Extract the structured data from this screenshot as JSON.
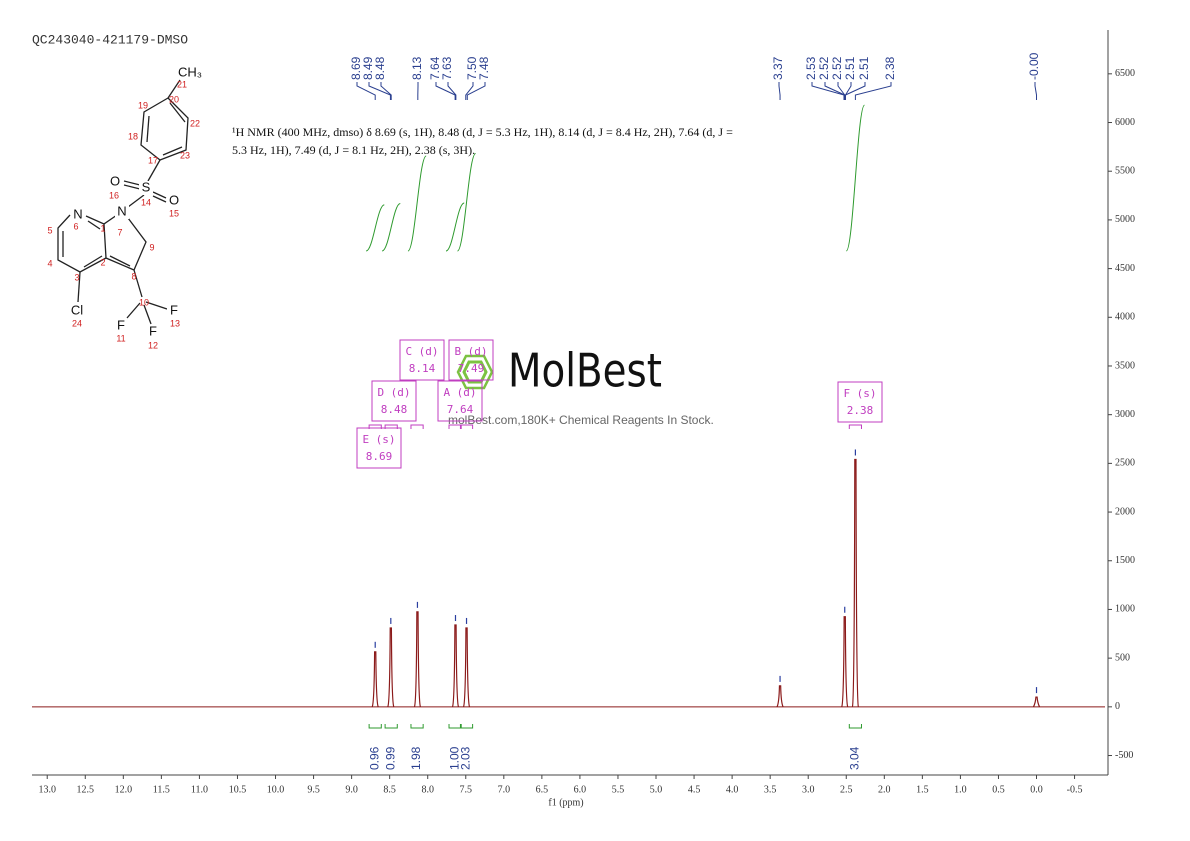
{
  "chart_data": {
    "type": "spectrum",
    "title": "QC243040-421179-DMSO",
    "x_label": "f1 (ppm)",
    "description": [
      "¹H NMR (400 MHz, dmso) δ 8.69 (s, 1H), 8.48 (d, J = 5.3 Hz, 1H), 8.14 (d, J = 8.4 Hz, 2H), 7.64 (d, J =",
      "5.3 Hz, 1H), 7.49 (d, J = 8.1 Hz, 2H), 2.38 (s, 3H)."
    ],
    "watermark": {
      "brand": "MolBest",
      "tagline": "molBest.com,180K+ Chemical Reagents In Stock."
    },
    "color": "#8b1a1a",
    "x": [
      8.69,
      8.485,
      8.135,
      7.635,
      7.49,
      3.37,
      2.52,
      2.38,
      0
    ],
    "values": [
      565,
      810,
      975,
      840,
      810,
      215,
      925,
      2540,
      100
    ],
    "xlim": [
      13.2,
      -0.9
    ],
    "ylim": [
      -700,
      6950
    ],
    "xticks": [
      {
        "value": 13,
        "label": "13.0"
      },
      12.5,
      {
        "value": 12,
        "label": "12.0"
      },
      11.5,
      {
        "value": 11,
        "label": "11.0"
      },
      10.5,
      {
        "value": 10,
        "label": "10.0"
      },
      9.5,
      {
        "value": 9,
        "label": "9.0"
      },
      8.5,
      {
        "value": 8,
        "label": "8.0"
      },
      7.5,
      {
        "value": 7,
        "label": "7.0"
      },
      6.5,
      {
        "value": 6,
        "label": "6.0"
      },
      5.5,
      {
        "value": 5,
        "label": "5.0"
      },
      4.5,
      {
        "value": 4,
        "label": "4.0"
      },
      3.5,
      {
        "value": 3,
        "label": "3.0"
      },
      2.5,
      {
        "value": 2,
        "label": "2.0"
      },
      1.5,
      {
        "value": 1,
        "label": "1.0"
      },
      0.5,
      {
        "value": 0,
        "label": "0.0"
      },
      -0.5
    ],
    "yticks": [
      -500,
      0,
      500,
      1000,
      1500,
      2000,
      2500,
      3000,
      3500,
      4000,
      4500,
      5000,
      5500,
      6000,
      6500
    ],
    "peak_labels": {
      "values": [
        8.69,
        8.49,
        8.48,
        8.13,
        7.64,
        7.63,
        7.5,
        7.48,
        3.37,
        2.53,
        2.52,
        2.52,
        2.51,
        2.51,
        2.38,
        0
      ],
      "value_labels": [
        "8.69",
        "8.49",
        "8.48",
        "8.13",
        "7.64",
        "7.63",
        "7.50",
        "7.48",
        "3.37",
        "2.53",
        "2.52",
        "2.52",
        "2.51",
        "2.51",
        "2.38",
        "-0.00"
      ]
    },
    "integrals": {
      "x": [
        8.69,
        8.48,
        8.14,
        7.64,
        7.49,
        2.38
      ],
      "values": [
        0.96,
        0.99,
        1.98,
        1,
        2.03,
        3.04
      ],
      "value_labels": [
        "0.96",
        "0.99",
        "1.98",
        "1.00",
        "2.03",
        "3.04"
      ]
    },
    "multiplets": [
      {
        "label": "E (s)",
        "shift": 8.69
      },
      {
        "label": "D (d)",
        "shift": 8.48
      },
      {
        "label": "C (d)",
        "shift": 8.14
      },
      {
        "label": "B (d)",
        "shift": 7.49
      },
      {
        "label": "A (d)",
        "shift": 7.64
      },
      {
        "label": "F (s)",
        "shift": 2.38
      }
    ],
    "molecule": [
      "CH₃",
      "21",
      "20",
      "19",
      "22",
      "18",
      "23",
      "17",
      "O",
      "S",
      "O",
      "16",
      "14",
      "15",
      "N",
      "6",
      "1",
      "N",
      "7",
      "5",
      "9",
      "4",
      "2",
      "3",
      "8",
      "10",
      "Cl",
      "24",
      "F",
      "13",
      "F",
      "11",
      "F",
      "12"
    ]
  }
}
